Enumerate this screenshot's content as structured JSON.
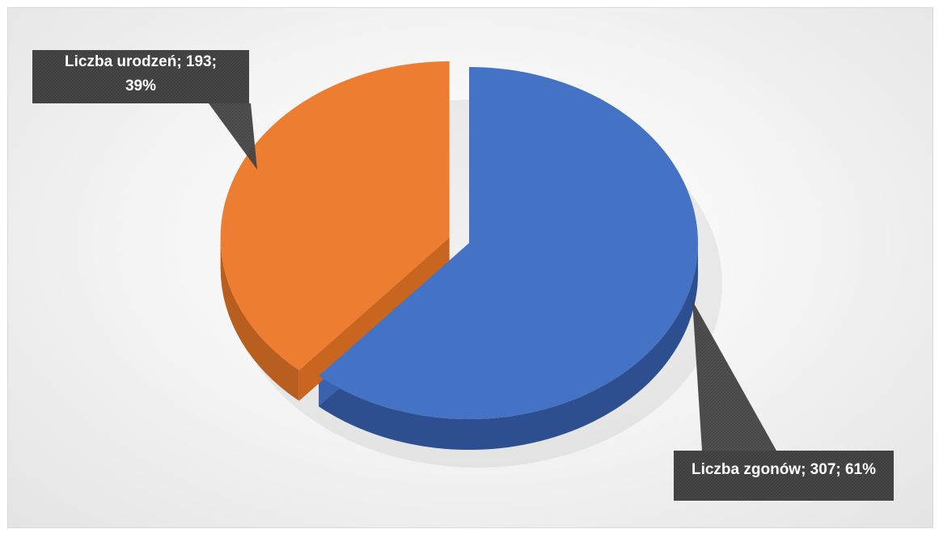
{
  "chart_data": {
    "type": "pie",
    "title": "",
    "slices": [
      {
        "name": "Liczba zgonów",
        "value": 307,
        "percent": "61%",
        "color": "#4472c4",
        "side_color": "#2e4f8f",
        "label": "Liczba zgonów; 307; 61%"
      },
      {
        "name": "Liczba urodzeń",
        "value": 193,
        "percent": "39%",
        "color": "#ed7d31",
        "side_color": "#b85e1f",
        "label_lines": [
          "Liczba urodzeń; 193;",
          "39%"
        ]
      }
    ],
    "exploded": true,
    "style": "3d",
    "label_style": "callout",
    "callout_color": "#404040"
  }
}
